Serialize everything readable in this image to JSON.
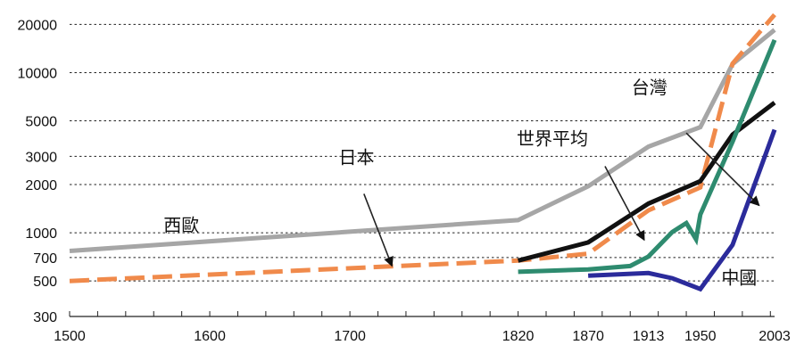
{
  "chart_data": {
    "type": "line",
    "title": "",
    "xlabel": "",
    "ylabel": "",
    "y_scale": "log",
    "ylim": [
      300,
      25000
    ],
    "xlim": [
      1500,
      2003
    ],
    "grid": true,
    "x_ticks": [
      1500,
      1600,
      1700,
      1820,
      1870,
      1913,
      1950,
      2003
    ],
    "x_tick_labels": [
      "1500",
      "1600",
      "1700",
      "1820",
      "1870",
      "1913",
      "1950",
      "2003"
    ],
    "y_ticks": [
      300,
      500,
      700,
      1000,
      2000,
      3000,
      5000,
      10000,
      20000
    ],
    "y_tick_labels": [
      "300",
      "500",
      "700",
      "1000",
      "2000",
      "3000",
      "5000",
      "10000",
      "20000"
    ],
    "series": [
      {
        "name": "西歐",
        "color": "#a6a6a6",
        "dash": "solid",
        "points": [
          [
            1500,
            770
          ],
          [
            1820,
            1200
          ],
          [
            1870,
            1950
          ],
          [
            1913,
            3450
          ],
          [
            1950,
            4570
          ],
          [
            1973,
            11300
          ],
          [
            2003,
            18500
          ]
        ]
      },
      {
        "name": "日本",
        "color": "#f08a4b",
        "dash": "dashed",
        "points": [
          [
            1500,
            500
          ],
          [
            1820,
            670
          ],
          [
            1870,
            740
          ],
          [
            1913,
            1380
          ],
          [
            1950,
            1920
          ],
          [
            1973,
            11400
          ],
          [
            2003,
            23000
          ]
        ]
      },
      {
        "name": "世界平均",
        "color": "#111111",
        "dash": "solid",
        "points": [
          [
            1820,
            670
          ],
          [
            1870,
            870
          ],
          [
            1913,
            1520
          ],
          [
            1950,
            2100
          ],
          [
            1973,
            4100
          ],
          [
            2003,
            6500
          ]
        ]
      },
      {
        "name": "台灣",
        "color": "#2e8b6f",
        "dash": "solid",
        "points": [
          [
            1820,
            570
          ],
          [
            1870,
            590
          ],
          [
            1900,
            620
          ],
          [
            1913,
            710
          ],
          [
            1930,
            1010
          ],
          [
            1940,
            1150
          ],
          [
            1947,
            910
          ],
          [
            1950,
            1300
          ],
          [
            1973,
            3700
          ],
          [
            2003,
            16000
          ]
        ]
      },
      {
        "name": "中國",
        "color": "#2b2b9b",
        "dash": "solid",
        "points": [
          [
            1870,
            540
          ],
          [
            1913,
            560
          ],
          [
            1930,
            520
          ],
          [
            1950,
            445
          ],
          [
            1973,
            840
          ],
          [
            2003,
            4400
          ]
        ]
      }
    ],
    "annotations": [
      "西歐",
      "日本",
      "世界平均",
      "台灣",
      "中國"
    ]
  }
}
